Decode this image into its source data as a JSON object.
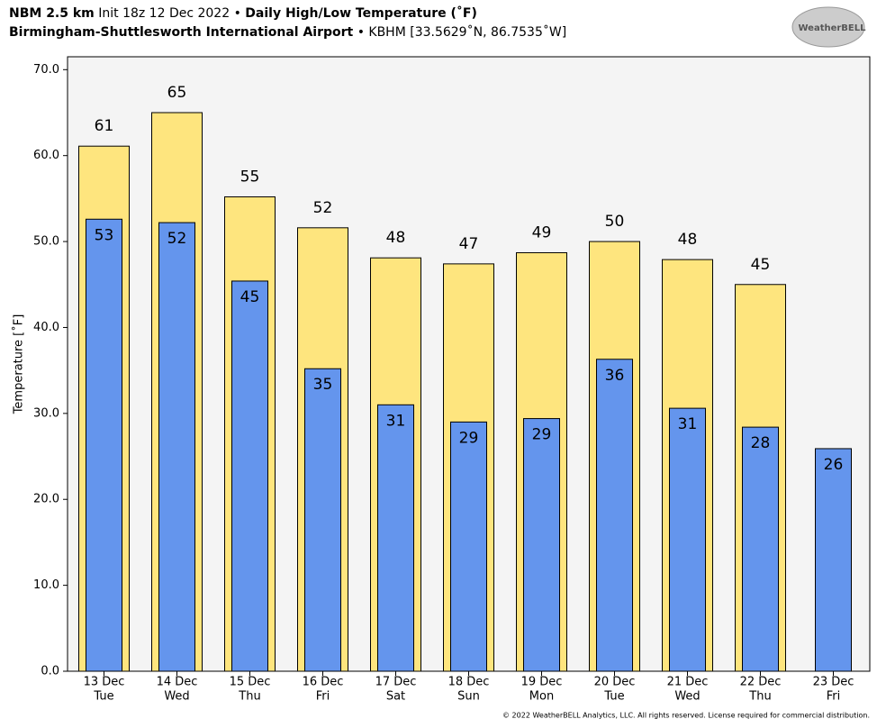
{
  "chart_data": {
    "type": "bar",
    "model": "NBM 2.5 km",
    "init": "Init 18z 12 Dec 2022 •",
    "title": "Daily High/Low Temperature (˚F)",
    "station": "Birmingham-Shuttlesworth International Airport",
    "station_info": "• KBHM [33.5629˚N, 86.7535˚W]",
    "logo": "WeatherBELL",
    "copyright": "© 2022 WeatherBELL Analytics, LLC. All rights reserved. License required for commercial distribution.",
    "ylabel": "Temperature [˚F]",
    "categories": [
      "13 Dec",
      "14 Dec",
      "15 Dec",
      "16 Dec",
      "17 Dec",
      "18 Dec",
      "19 Dec",
      "20 Dec",
      "21 Dec",
      "22 Dec",
      "23 Dec"
    ],
    "weekdays": [
      "Tue",
      "Wed",
      "Thu",
      "Fri",
      "Sat",
      "Sun",
      "Mon",
      "Tue",
      "Wed",
      "Thu",
      "Fri"
    ],
    "series": [
      {
        "name": "High",
        "color": "#fee57e",
        "values": [
          61.1,
          65.0,
          55.2,
          51.6,
          48.1,
          47.4,
          48.7,
          50.0,
          47.9,
          45.0,
          null
        ],
        "value_labels": [
          "61",
          "65",
          "55",
          "52",
          "48",
          "47",
          "49",
          "50",
          "48",
          "45",
          null
        ]
      },
      {
        "name": "Low",
        "color": "#6495ed",
        "values": [
          52.6,
          52.2,
          45.4,
          35.2,
          31.0,
          29.0,
          29.4,
          36.3,
          30.6,
          28.4,
          25.9
        ],
        "value_labels": [
          "53",
          "52",
          "45",
          "35",
          "31",
          "29",
          "29",
          "36",
          "31",
          "28",
          "26"
        ]
      }
    ],
    "ylim": [
      0,
      71.5
    ],
    "yticks": [
      {
        "value": 0,
        "label": "0.0"
      },
      {
        "value": 10,
        "label": "10.0"
      },
      {
        "value": 20,
        "label": "20.0"
      },
      {
        "value": 30,
        "label": "30.0"
      },
      {
        "value": 40,
        "label": "40.0"
      },
      {
        "value": 50,
        "label": "50.0"
      },
      {
        "value": 60,
        "label": "60.0"
      },
      {
        "value": 70,
        "label": "70.0"
      }
    ],
    "background": "#f4f4f4"
  }
}
